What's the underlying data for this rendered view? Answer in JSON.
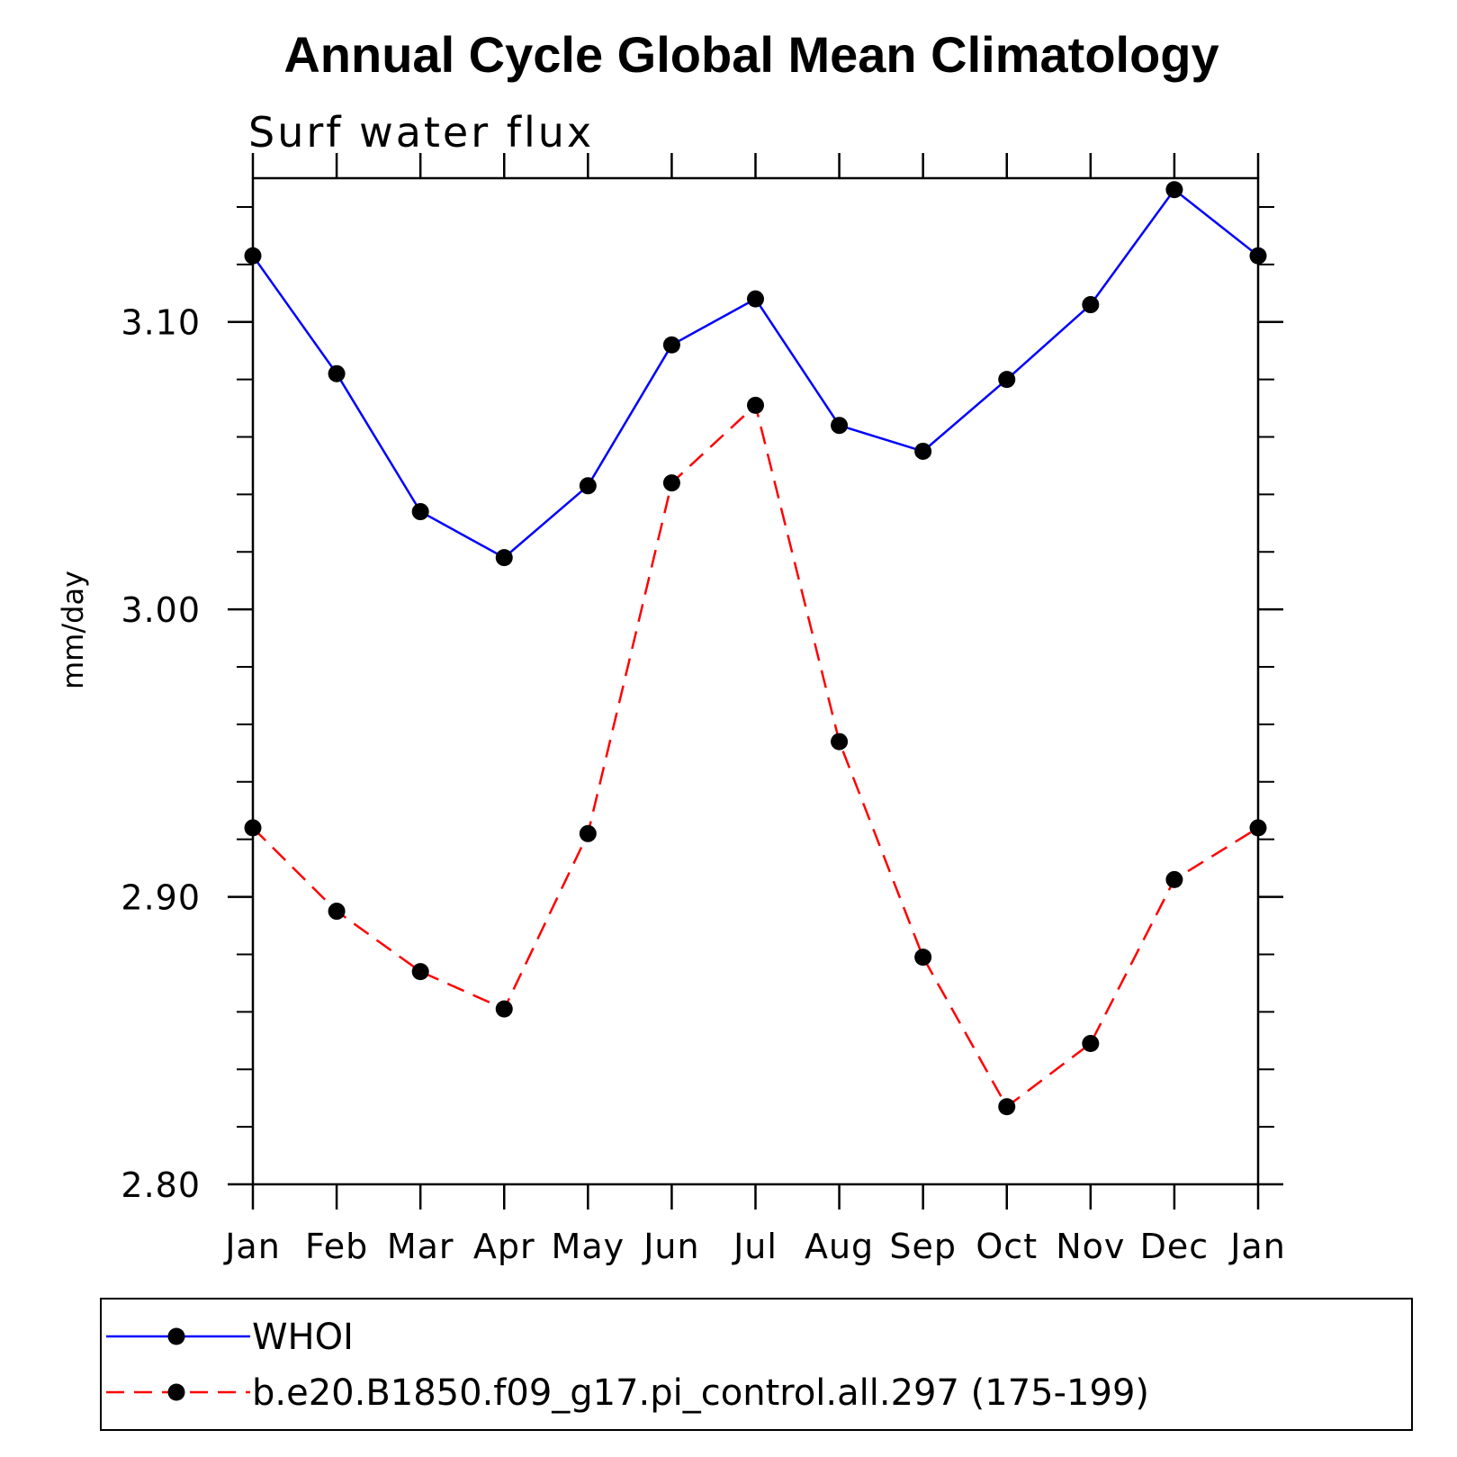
{
  "chart_data": {
    "type": "line",
    "title": "Annual Cycle Global Mean Climatology",
    "subtitle": "Surf water flux",
    "xlabel": "",
    "ylabel": "mm/day",
    "categories": [
      "Jan",
      "Feb",
      "Mar",
      "Apr",
      "May",
      "Jun",
      "Jul",
      "Aug",
      "Sep",
      "Oct",
      "Nov",
      "Dec",
      "Jan"
    ],
    "ylim": [
      2.8,
      3.15
    ],
    "y_ticks": [
      "2.80",
      "2.90",
      "3.00",
      "3.10"
    ],
    "grid": false,
    "legend_position": "bottom",
    "series": [
      {
        "name": "WHOI",
        "color": "#0000ff",
        "line_style": "solid",
        "marker": "filled-circle",
        "values": [
          3.123,
          3.082,
          3.034,
          3.018,
          3.043,
          3.092,
          3.108,
          3.064,
          3.055,
          3.08,
          3.106,
          3.146,
          3.123
        ]
      },
      {
        "name": "b.e20.B1850.f09_g17.pi_control.all.297 (175-199)",
        "color": "#ff0000",
        "line_style": "dashed",
        "marker": "filled-circle",
        "values": [
          2.924,
          2.895,
          2.874,
          2.861,
          2.922,
          3.044,
          3.071,
          2.954,
          2.879,
          2.827,
          2.849,
          2.906,
          2.924
        ]
      }
    ]
  }
}
